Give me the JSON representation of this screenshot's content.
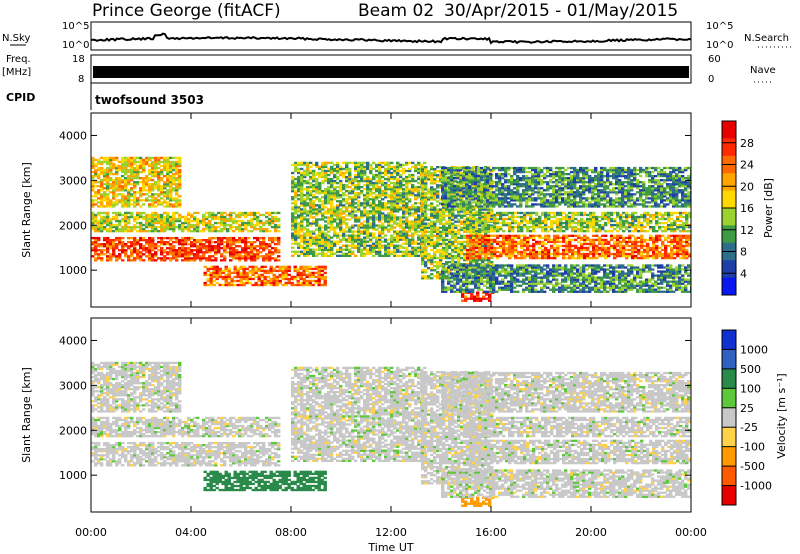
{
  "header": {
    "station": "Prince George (fitACF)",
    "beam": "Beam 02",
    "dates": "30/Apr/2015 - 01/May/2015"
  },
  "param_panels": {
    "nsky": {
      "label": "N.Sky",
      "ticks": [
        "10^5",
        "10^0"
      ]
    },
    "nsearch": {
      "label": "N.Search",
      "ticks": [
        "10^5",
        "10^0"
      ]
    },
    "freq": {
      "label": "Freq.",
      "unit": "[MHz]",
      "ticks": [
        "18",
        "8"
      ]
    },
    "nave": {
      "label": "Nave",
      "ticks": [
        "60",
        "0"
      ]
    },
    "cpid": {
      "label": "CPID",
      "value": "twofsound 3503"
    }
  },
  "power_panel": {
    "ylabel": "Slant Range [km]",
    "yticks": [
      "4000",
      "3000",
      "2000",
      "1000"
    ],
    "colorbar_label": "Power [dB]",
    "colorbar_ticks": [
      "28",
      "24",
      "20",
      "16",
      "12",
      "8",
      "4"
    ],
    "colors": [
      "#0a18f0",
      "#1f3fa8",
      "#2e6e8a",
      "#3e9a44",
      "#9ad22e",
      "#ffd800",
      "#ffa400",
      "#ff6a00",
      "#ff2a00",
      "#e80000"
    ]
  },
  "velocity_panel": {
    "ylabel": "Slant Range [km]",
    "yticks": [
      "4000",
      "3000",
      "2000",
      "1000"
    ],
    "colorbar_label": "Velocity [m s⁻¹]",
    "colorbar_ticks": [
      "1000",
      "500",
      "100",
      "25",
      "-25",
      "-100",
      "-500",
      "-1000"
    ],
    "colors": [
      "#1030d0",
      "#3060c0",
      "#2a8a4a",
      "#5cc83a",
      "#c8c8c8",
      "#ffd24a",
      "#ff9a00",
      "#ff5a00",
      "#e80000"
    ]
  },
  "xaxis": {
    "label": "Time UT",
    "ticks": [
      "00:00",
      "04:00",
      "08:00",
      "12:00",
      "16:00",
      "20:00",
      "00:00"
    ]
  },
  "chart_data": {
    "type": "heatmap",
    "x_range_hours": [
      0,
      24
    ],
    "y_range_km": [
      180,
      4500
    ],
    "power_range_db": [
      0,
      32
    ],
    "velocity_range_ms": [
      -1000,
      1000
    ],
    "features": [
      {
        "name": "main-band-left",
        "t": [
          0,
          7.5
        ],
        "range_km": [
          1200,
          1700
        ],
        "power_db": 26,
        "velocity_ms": 0
      },
      {
        "name": "rising-arc-left",
        "t": [
          0,
          7.5
        ],
        "range_km": [
          1850,
          2300
        ],
        "power_db": 16,
        "velocity_ms": 0
      },
      {
        "name": "upper-scatter-left",
        "t": [
          0,
          3.5
        ],
        "range_km": [
          2400,
          3500
        ],
        "power_db": 18,
        "velocity_ms": 0
      },
      {
        "name": "low-patch-morning",
        "t": [
          4.5,
          9.3
        ],
        "range_km": [
          650,
          1100
        ],
        "power_db": 24,
        "velocity_ms": 150
      },
      {
        "name": "arc-to-noon",
        "t": [
          8,
          13.3
        ],
        "range_km": [
          1300,
          3400
        ],
        "power_db": 14,
        "velocity_ms": 0
      },
      {
        "name": "descending-branch",
        "t": [
          13.2,
          16
        ],
        "range_km": [
          800,
          3300
        ],
        "power_db": 14,
        "velocity_ms": 0
      },
      {
        "name": "low-patch-afternoon",
        "t": [
          14.8,
          16
        ],
        "range_km": [
          300,
          500
        ],
        "power_db": 28,
        "velocity_ms": -400
      },
      {
        "name": "main-band-right",
        "t": [
          15,
          24
        ],
        "range_km": [
          1250,
          1750
        ],
        "power_db": 24,
        "velocity_ms": 0
      },
      {
        "name": "mid-band-right",
        "t": [
          15,
          24
        ],
        "range_km": [
          1850,
          2300
        ],
        "power_db": 14,
        "velocity_ms": 0
      },
      {
        "name": "near-range-right",
        "t": [
          14,
          24
        ],
        "range_km": [
          500,
          1100
        ],
        "power_db": 10,
        "velocity_ms": 0
      },
      {
        "name": "streaks-upper-right",
        "t": [
          14,
          24
        ],
        "range_km": [
          2400,
          3300
        ],
        "power_db": 10,
        "velocity_ms": 0
      }
    ]
  }
}
